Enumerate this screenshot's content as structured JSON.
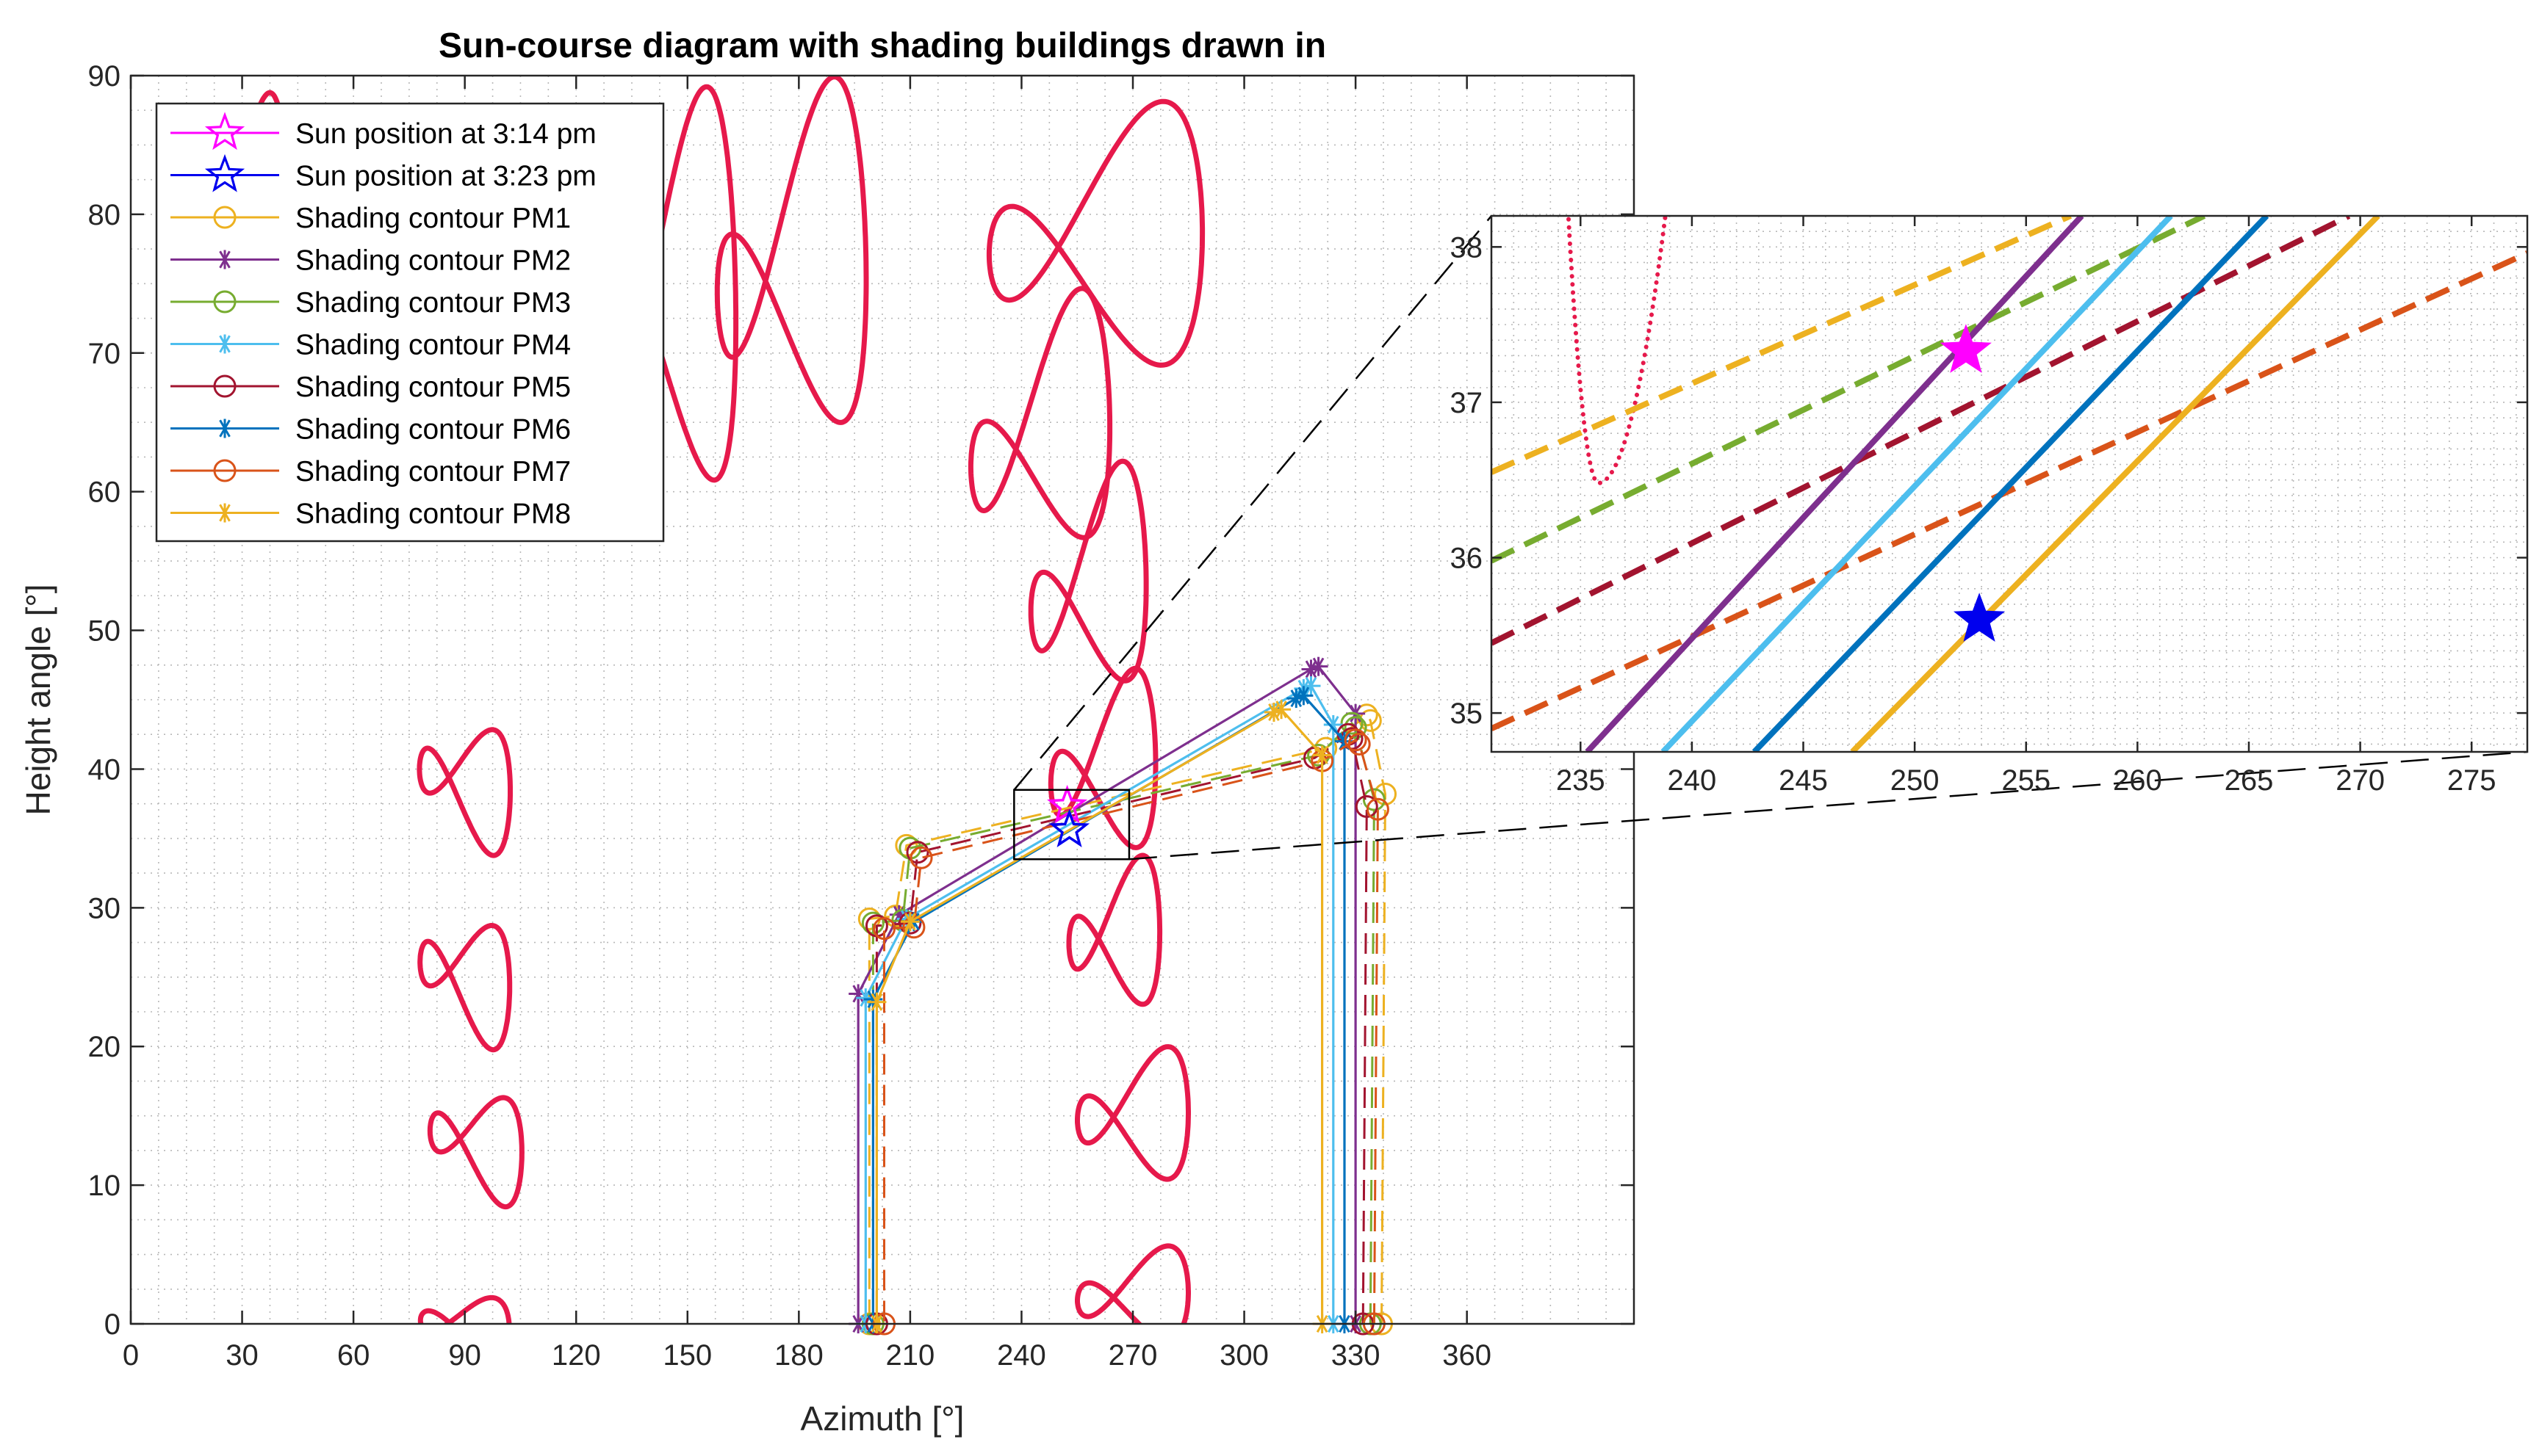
{
  "chart_data": [
    {
      "type": "line",
      "title": "Sun-course diagram with shading buildings drawn in",
      "xlabel": "Azimuth [°]",
      "ylabel": "Height angle [°]",
      "xlim": [
        0,
        405
      ],
      "ylim": [
        0,
        90
      ],
      "xticks": [
        "0",
        "30",
        "60",
        "90",
        "120",
        "150",
        "180",
        "210",
        "240",
        "270",
        "300",
        "330",
        "360"
      ],
      "yticks": [
        "0",
        "10",
        "20",
        "30",
        "40",
        "50",
        "60",
        "70",
        "80",
        "90"
      ],
      "grid": "dotted minor grid",
      "legend_position": "top-left",
      "colors": {
        "analemma": "#e6194b",
        "sun_314": "#ff00ff",
        "sun_323": "#0000ee",
        "PM1": "#edb120",
        "PM2": "#7e2f8e",
        "PM3": "#77ac30",
        "PM4": "#4dbeee",
        "PM5": "#a2142f",
        "PM6": "#0072bd",
        "PM7": "#d95319",
        "PM8": "#edb120"
      },
      "legend": [
        {
          "label": "Sun position at 3:14 pm",
          "color": "#ff00ff",
          "marker": "star-open"
        },
        {
          "label": "Sun position at 3:23 pm",
          "color": "#0000ee",
          "marker": "star-open"
        },
        {
          "label": "Shading contour PM1",
          "color": "#edb120",
          "marker": "circle"
        },
        {
          "label": "Shading contour PM2",
          "color": "#7e2f8e",
          "marker": "asterisk"
        },
        {
          "label": "Shading contour PM3",
          "color": "#77ac30",
          "marker": "circle"
        },
        {
          "label": "Shading contour PM4",
          "color": "#4dbeee",
          "marker": "asterisk"
        },
        {
          "label": "Shading contour PM5",
          "color": "#a2142f",
          "marker": "circle"
        },
        {
          "label": "Shading contour PM6",
          "color": "#0072bd",
          "marker": "asterisk"
        },
        {
          "label": "Shading contour PM7",
          "color": "#d95319",
          "marker": "circle"
        },
        {
          "label": "Shading contour PM8",
          "color": "#edb120",
          "marker": "asterisk"
        }
      ],
      "sun_positions": [
        {
          "name": "Sun position at 3:14 pm",
          "x": 252.3,
          "y": 37.33
        },
        {
          "name": "Sun position at 3:23 pm",
          "x": 252.9,
          "y": 35.6
        }
      ],
      "series": [
        {
          "name": "Shading contour PM1",
          "style": "dashed",
          "marker": "circle",
          "x": [
            337,
            338,
            334,
            333,
            322,
            209,
            206,
            199,
            199
          ],
          "y": [
            0,
            38.2,
            43.5,
            43.9,
            41.5,
            34.5,
            29.4,
            29.2,
            0
          ]
        },
        {
          "name": "Shading contour PM2",
          "style": "solid",
          "marker": "asterisk",
          "x": [
            330,
            330,
            320,
            318,
            207,
            196,
            196
          ],
          "y": [
            0,
            44.0,
            47.4,
            47.2,
            29.5,
            23.8,
            0
          ]
        },
        {
          "name": "Shading contour PM3",
          "style": "dashed",
          "marker": "circle",
          "x": [
            334,
            335,
            330,
            329,
            320,
            210,
            208,
            200,
            200
          ],
          "y": [
            0,
            37.8,
            43.0,
            43.3,
            41.0,
            34.3,
            29.1,
            28.9,
            0
          ]
        },
        {
          "name": "Shading contour PM4",
          "style": "solid",
          "marker": "asterisk",
          "x": [
            324,
            324,
            318,
            316,
            209,
            198,
            198
          ],
          "y": [
            0,
            43.2,
            46.0,
            45.8,
            29.2,
            23.5,
            0
          ]
        },
        {
          "name": "Shading contour PM5",
          "style": "dashed",
          "marker": "circle",
          "x": [
            332,
            333,
            329,
            328,
            319,
            212,
            210,
            201,
            201
          ],
          "y": [
            0,
            37.3,
            42.2,
            42.5,
            40.8,
            34.0,
            28.9,
            28.7,
            0
          ]
        },
        {
          "name": "Shading contour PM6",
          "style": "solid",
          "marker": "asterisk",
          "x": [
            327,
            327,
            316,
            314,
            211,
            200,
            200
          ],
          "y": [
            0,
            42.0,
            45.3,
            45.1,
            29.0,
            23.4,
            0
          ]
        },
        {
          "name": "Shading contour PM7",
          "style": "dashed",
          "marker": "circle",
          "x": [
            335,
            336,
            331,
            330,
            321,
            213,
            211,
            203,
            203
          ],
          "y": [
            0,
            37.1,
            41.8,
            42.1,
            40.6,
            33.6,
            28.6,
            28.5,
            0
          ]
        },
        {
          "name": "Shading contour PM8",
          "style": "solid",
          "marker": "asterisk",
          "x": [
            321,
            321,
            310,
            308,
            210,
            201,
            201
          ],
          "y": [
            0,
            41.0,
            44.3,
            44.1,
            29.0,
            23.2,
            0
          ]
        }
      ],
      "analemma_loops": [
        {
          "center": [
            30,
            79
          ],
          "A": 25,
          "B": 14,
          "rot": 8
        },
        {
          "center": [
            78,
            74
          ],
          "A": 22,
          "B": 20,
          "rot": 15
        },
        {
          "center": [
            145,
            74
          ],
          "A": 38,
          "B": 22,
          "rot": 20
        },
        {
          "center": [
            178,
            76
          ],
          "A": 44,
          "B": 20,
          "rot": 25
        },
        {
          "center": [
            260,
            78
          ],
          "A": 58,
          "B": 14,
          "rot": 8
        },
        {
          "center": [
            245,
            64
          ],
          "A": 43,
          "B": 15,
          "rot": 30
        },
        {
          "center": [
            258,
            53
          ],
          "A": 35,
          "B": 13,
          "rot": 28
        },
        {
          "center": [
            262,
            40
          ],
          "A": 30,
          "B": 10,
          "rot": 20
        },
        {
          "center": [
            265,
            28
          ],
          "A": 25,
          "B": 8,
          "rot": 12
        },
        {
          "center": [
            270,
            15
          ],
          "A": 30,
          "B": 7,
          "rot": 5
        },
        {
          "center": [
            270,
            2
          ],
          "A": 30,
          "B": 5,
          "rot": 5
        },
        {
          "center": [
            90,
            39
          ],
          "A": 26,
          "B": 7,
          "rot": -20
        },
        {
          "center": [
            90,
            25
          ],
          "A": 26,
          "B": 7,
          "rot": -22
        },
        {
          "center": [
            93,
            13
          ],
          "A": 26,
          "B": 6,
          "rot": -18
        },
        {
          "center": [
            90,
            0
          ],
          "A": 24,
          "B": 3,
          "rot": -5
        }
      ],
      "inset_box": {
        "x": [
          238,
          269
        ],
        "y": [
          33.5,
          38.5
        ]
      }
    },
    {
      "type": "line",
      "title": "",
      "xlim": [
        231,
        277.5
      ],
      "ylim": [
        34.75,
        38.2
      ],
      "xticks": [
        "235",
        "240",
        "245",
        "250",
        "255",
        "260",
        "265",
        "270",
        "275"
      ],
      "yticks": [
        "35",
        "36",
        "37",
        "38"
      ],
      "grid": "dotted minor grid",
      "series": [
        {
          "name": "Shading contour PM1",
          "style": "dashed",
          "x": [
            231,
            257
          ],
          "y": [
            36.55,
            38.2
          ]
        },
        {
          "name": "Shading contour PM3",
          "style": "dashed",
          "x": [
            231,
            263
          ],
          "y": [
            35.98,
            38.2
          ]
        },
        {
          "name": "Shading contour PM5",
          "style": "dashed",
          "x": [
            231,
            269.5
          ],
          "y": [
            35.45,
            38.2
          ]
        },
        {
          "name": "Shading contour PM7",
          "style": "dashed",
          "x": [
            231,
            277.5
          ],
          "y": [
            34.9,
            37.96
          ]
        },
        {
          "name": "Shading contour PM2",
          "style": "solid",
          "x": [
            235.3,
            257.5
          ],
          "y": [
            34.75,
            38.2
          ]
        },
        {
          "name": "Shading contour PM4",
          "style": "solid",
          "x": [
            238.7,
            261.5
          ],
          "y": [
            34.75,
            38.2
          ]
        },
        {
          "name": "Shading contour PM6",
          "style": "solid",
          "x": [
            242.8,
            265.8
          ],
          "y": [
            34.75,
            38.2
          ]
        },
        {
          "name": "Shading contour PM8",
          "style": "solid",
          "x": [
            247.2,
            270.8
          ],
          "y": [
            34.75,
            38.2
          ]
        }
      ],
      "sun_positions": [
        {
          "name": "Sun position at 3:14 pm",
          "x": 252.3,
          "y": 37.33
        },
        {
          "name": "Sun position at 3:23 pm",
          "x": 252.9,
          "y": 35.6
        }
      ],
      "analemma_segment": {
        "vertex": [
          235.8,
          36.48
        ],
        "x_range": [
          233.4,
          240.0
        ]
      }
    }
  ]
}
